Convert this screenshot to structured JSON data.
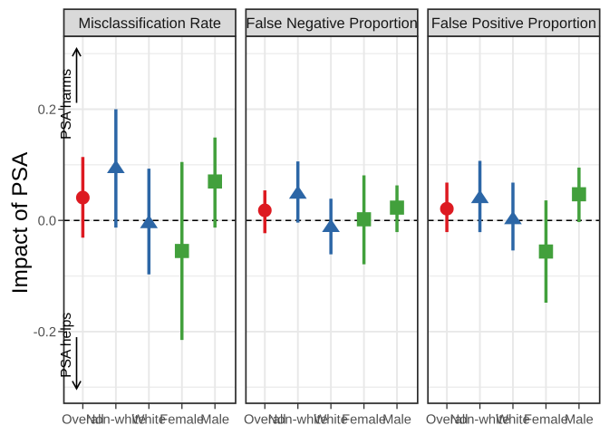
{
  "chart_data": {
    "type": "pointrange",
    "title": "",
    "ylabel": "Impact of PSA",
    "xlabel": "",
    "ylim": [
      -0.331,
      0.331
    ],
    "yticks": [
      0.2,
      0.0,
      -0.2
    ],
    "ytick_labels": [
      "0.2",
      "0.0",
      "-0.2"
    ],
    "reference_line": 0.0,
    "grid": true,
    "legend": "none",
    "facets": [
      "Misclassification Rate",
      "False Negative Proportion",
      "False Positive Proportion"
    ],
    "categories": [
      "Overall",
      "Non-white",
      "White",
      "Female",
      "Male"
    ],
    "group_styles": {
      "Overall": {
        "color": "#DD1A21",
        "shape": "circle"
      },
      "Non-white": {
        "color": "#2C66A6",
        "shape": "triangle"
      },
      "White": {
        "color": "#2C66A6",
        "shape": "triangle"
      },
      "Female": {
        "color": "#42A03C",
        "shape": "square"
      },
      "Male": {
        "color": "#42A03C",
        "shape": "square"
      }
    },
    "series": [
      {
        "facet": "Misclassification Rate",
        "points": [
          {
            "category": "Overall",
            "estimate": 0.041,
            "lower": -0.031,
            "upper": 0.114
          },
          {
            "category": "Non-white",
            "estimate": 0.097,
            "lower": -0.013,
            "upper": 0.2
          },
          {
            "category": "White",
            "estimate": -0.002,
            "lower": -0.097,
            "upper": 0.093
          },
          {
            "category": "Female",
            "estimate": -0.055,
            "lower": -0.215,
            "upper": 0.105
          },
          {
            "category": "Male",
            "estimate": 0.07,
            "lower": -0.013,
            "upper": 0.149
          }
        ]
      },
      {
        "facet": "False Negative Proportion",
        "points": [
          {
            "category": "Overall",
            "estimate": 0.018,
            "lower": -0.023,
            "upper": 0.054
          },
          {
            "category": "Non-white",
            "estimate": 0.051,
            "lower": -0.004,
            "upper": 0.106
          },
          {
            "category": "White",
            "estimate": -0.009,
            "lower": -0.061,
            "upper": 0.039
          },
          {
            "category": "Female",
            "estimate": 0.002,
            "lower": -0.079,
            "upper": 0.081
          },
          {
            "category": "Male",
            "estimate": 0.023,
            "lower": -0.021,
            "upper": 0.063
          }
        ]
      },
      {
        "facet": "False Positive Proportion",
        "points": [
          {
            "category": "Overall",
            "estimate": 0.021,
            "lower": -0.021,
            "upper": 0.068
          },
          {
            "category": "Non-white",
            "estimate": 0.043,
            "lower": -0.021,
            "upper": 0.107
          },
          {
            "category": "White",
            "estimate": 0.005,
            "lower": -0.054,
            "upper": 0.068
          },
          {
            "category": "Female",
            "estimate": -0.056,
            "lower": -0.148,
            "upper": 0.036
          },
          {
            "category": "Male",
            "estimate": 0.047,
            "lower": -0.003,
            "upper": 0.095
          }
        ]
      }
    ],
    "annotations": [
      {
        "label": "PSA harms",
        "arrow": "up",
        "text_y": 0.2091,
        "arrow_from": 0.2114,
        "arrow_to": 0.309
      },
      {
        "label": "PSA helps",
        "arrow": "down",
        "text_y": -0.2243,
        "arrow_from": -0.21,
        "arrow_to": -0.3028
      }
    ]
  },
  "style": {
    "background": "#FFFFFF",
    "panel_background": "#FFFFFF",
    "panel_border": "#2B2B2B",
    "strip_fill": "#D9D9D9",
    "strip_border": "#2B2B2B",
    "grid_major": "#E8E8E8",
    "grid_minor": "#EDEDED",
    "tick_color": "#333333",
    "tick_label_color": "#4D4D4D",
    "text_color": "#000000",
    "reference_line_color": "#000000"
  }
}
